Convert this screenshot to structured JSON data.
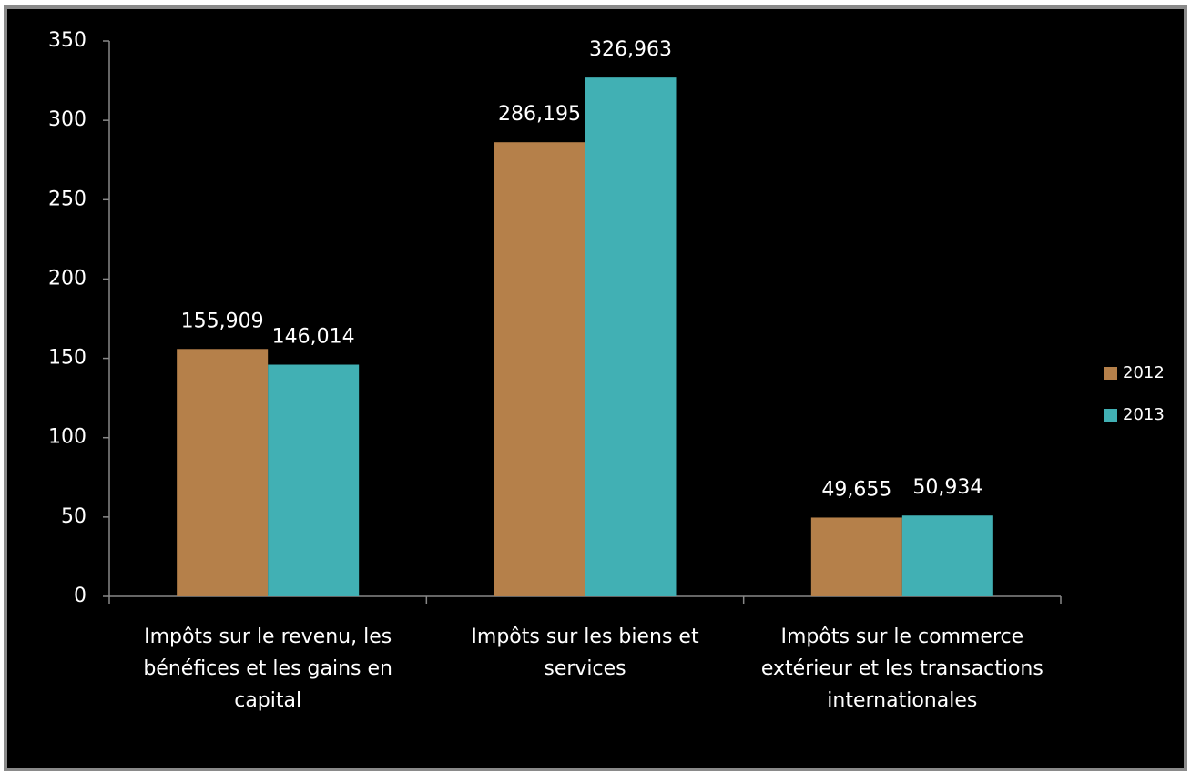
{
  "chart_data": {
    "type": "bar",
    "categories": [
      "Impôts sur le revenu, les bénéfices et les gains en capital",
      "Impôts sur les biens et services",
      "Impôts sur le commerce extérieur et les transactions internationales"
    ],
    "series": [
      {
        "name": "2012",
        "color": "#b5804a",
        "values": [
          155.909,
          286.195,
          49.655
        ],
        "value_labels": [
          "155,909",
          "286,195",
          "49,655"
        ]
      },
      {
        "name": "2013",
        "color": "#41b0b4",
        "values": [
          146.014,
          326.963,
          50.934
        ],
        "value_labels": [
          "146,014",
          "326,963",
          "50,934"
        ]
      }
    ],
    "ylim": [
      0,
      350
    ],
    "yticks": [
      0,
      50,
      100,
      150,
      200,
      250,
      300,
      350
    ],
    "legend": "right"
  }
}
